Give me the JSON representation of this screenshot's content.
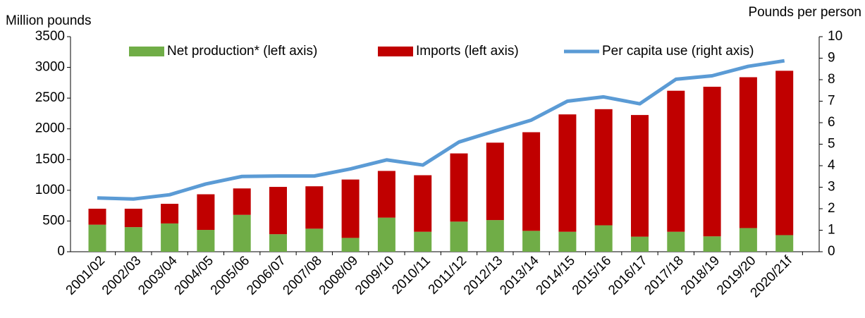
{
  "chart_data": {
    "type": "bar_line",
    "y_label": "Million pounds",
    "y2_label": "Pounds per person",
    "categories": [
      "2001/02",
      "2002/03",
      "2003/04",
      "2004/05",
      "2005/06",
      "2006/07",
      "2007/08",
      "2008/09",
      "2009/10",
      "2010/11",
      "2011/12",
      "2012/13",
      "2013/14",
      "2014/15",
      "2015/16",
      "2016/17",
      "2017/18",
      "2018/19",
      "2019/20",
      "2020/21f"
    ],
    "series": [
      {
        "name": "Net production* (left axis)",
        "color": "#70ad47",
        "kind": "bar",
        "stacked": true,
        "values": [
          440,
          400,
          460,
          355,
          600,
          285,
          375,
          225,
          555,
          325,
          490,
          515,
          340,
          325,
          430,
          245,
          325,
          250,
          385,
          270
        ]
      },
      {
        "name": "Imports (left axis)",
        "color": "#c00000",
        "kind": "bar",
        "stacked": true,
        "values": [
          260,
          300,
          320,
          580,
          430,
          770,
          690,
          950,
          760,
          920,
          1110,
          1260,
          1605,
          1910,
          1890,
          1980,
          2295,
          2435,
          2455,
          2675
        ]
      },
      {
        "name": "Per capita use (right axis)",
        "color": "#5b9bd5",
        "kind": "line",
        "axis": "y2",
        "values": [
          2.5,
          2.45,
          2.65,
          3.15,
          3.5,
          3.52,
          3.52,
          3.85,
          4.27,
          4.03,
          5.1,
          5.62,
          6.12,
          7.0,
          7.2,
          6.88,
          8.02,
          8.18,
          8.62,
          8.88
        ]
      }
    ],
    "ylim": [
      0,
      3500
    ],
    "yticks": [
      0,
      500,
      1000,
      1500,
      2000,
      2500,
      3000,
      3500
    ],
    "y2lim": [
      0,
      10
    ],
    "y2ticks": [
      0,
      1,
      2,
      3,
      4,
      5,
      6,
      7,
      8,
      9,
      10
    ],
    "legend": "top"
  }
}
